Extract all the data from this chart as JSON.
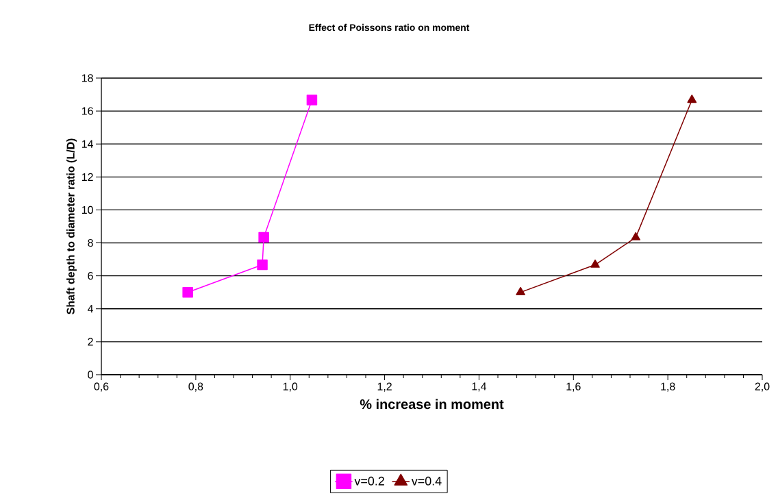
{
  "chart_data": {
    "type": "line",
    "title": "Effect of Poissons ratio on moment",
    "xlabel": "% increase  in moment",
    "ylabel": "Shaft depth to diameter ratio (L/D)",
    "series": [
      {
        "name": "v=0.2",
        "color": "#ff00ff",
        "marker": "square",
        "x": [
          0.783,
          0.941,
          0.944,
          1.046
        ],
        "values": [
          5,
          6.67,
          8.33,
          16.67
        ]
      },
      {
        "name": "v=0.4",
        "color": "#800000",
        "marker": "triangle",
        "x": [
          1.488,
          1.646,
          1.732,
          1.851
        ],
        "values": [
          5,
          6.67,
          8.33,
          16.67
        ]
      }
    ],
    "xlim": [
      0.6,
      2.0
    ],
    "xticks": [
      {
        "value": 0.6,
        "label": "0,6"
      },
      {
        "value": 0.8,
        "label": "0,8"
      },
      {
        "value": 1.0,
        "label": "1,0"
      },
      {
        "value": 1.2,
        "label": "1,2"
      },
      {
        "value": 1.4,
        "label": "1,4"
      },
      {
        "value": 1.6,
        "label": "1,6"
      },
      {
        "value": 1.8,
        "label": "1,8"
      },
      {
        "value": 2.0,
        "label": "2,0"
      }
    ],
    "ylim": [
      0,
      18
    ],
    "yticks": [
      0,
      2,
      4,
      6,
      8,
      10,
      12,
      14,
      16,
      18
    ],
    "grid": "y",
    "legend": "bottom",
    "line_style": "solid"
  }
}
